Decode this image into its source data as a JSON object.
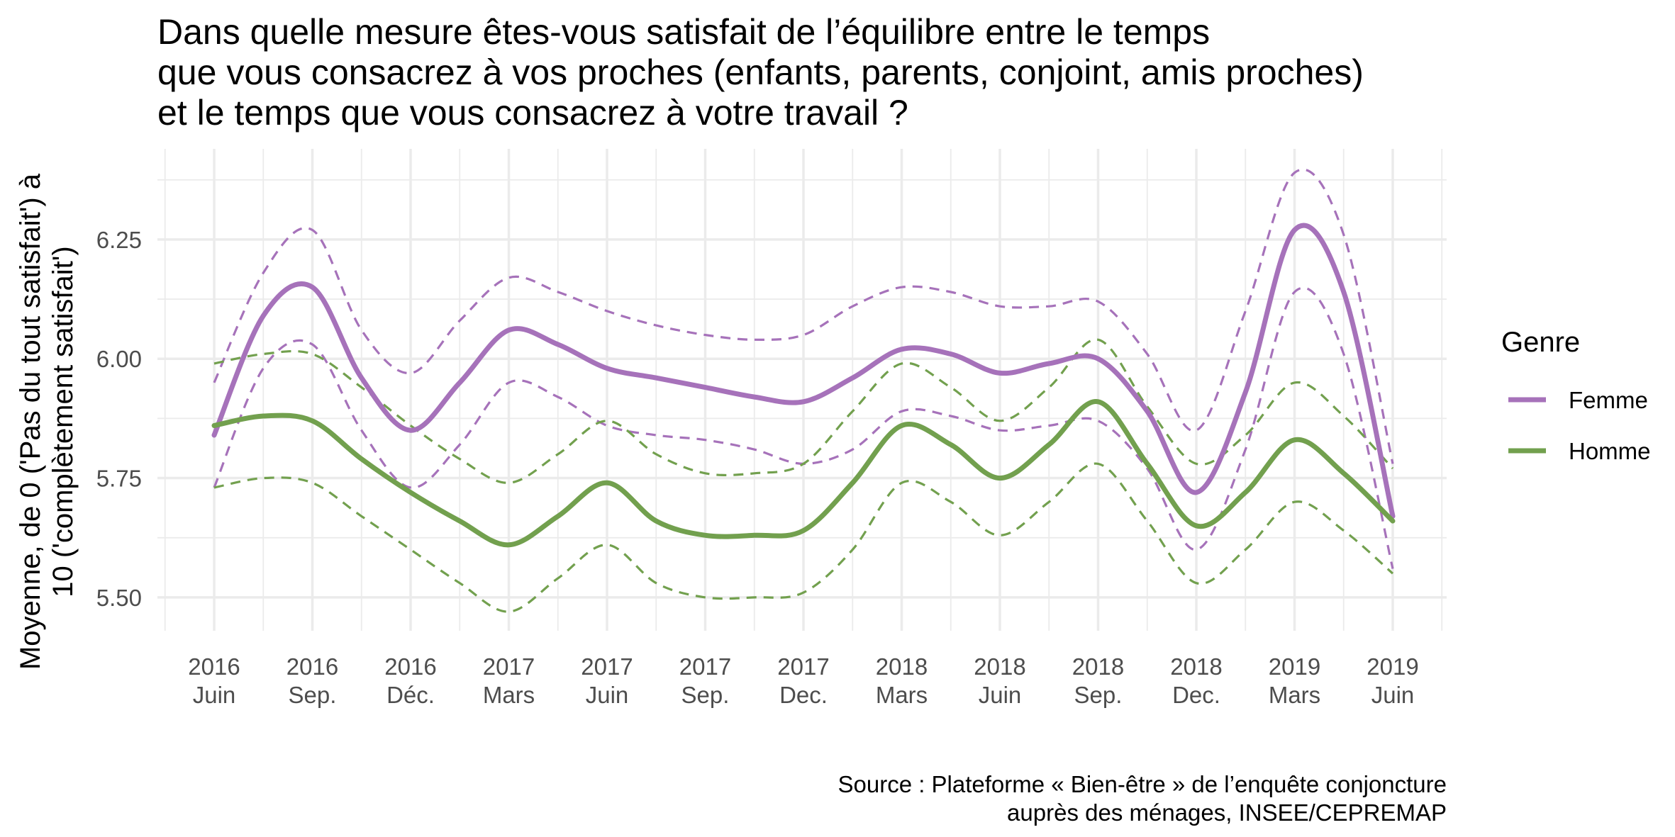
{
  "chart_data": {
    "type": "line",
    "title_lines": [
      "Dans quelle mesure êtes-vous satisfait de l’équilibre entre le temps",
      "que vous consacrez à vos proches (enfants, parents, conjoint, amis proches)",
      "et le temps que vous consacrez à votre travail ?"
    ],
    "ylabel_lines": [
      "Moyenne, de 0 ('Pas du tout satisfait') à",
      "10 ('complètement satisfait')"
    ],
    "xlabel": "",
    "x_ticks": [
      {
        "year": "2016",
        "month": "Juin"
      },
      {
        "year": "2016",
        "month": "Sep."
      },
      {
        "year": "2016",
        "month": "Déc."
      },
      {
        "year": "2017",
        "month": "Mars"
      },
      {
        "year": "2017",
        "month": "Juin"
      },
      {
        "year": "2017",
        "month": "Sep."
      },
      {
        "year": "2017",
        "month": "Dec."
      },
      {
        "year": "2018",
        "month": "Mars"
      },
      {
        "year": "2018",
        "month": "Juin"
      },
      {
        "year": "2018",
        "month": "Sep."
      },
      {
        "year": "2018",
        "month": "Dec."
      },
      {
        "year": "2019",
        "month": "Mars"
      },
      {
        "year": "2019",
        "month": "Juin"
      }
    ],
    "y_ticks": [
      "5.50",
      "5.75",
      "6.00",
      "6.25"
    ],
    "ylim": [
      5.43,
      6.44
    ],
    "xlim": [
      -0.5,
      12.5
    ],
    "grid": true,
    "legend": {
      "title": "Genre",
      "position": "right",
      "entries": [
        {
          "label": "Femme",
          "color": "#a672ba"
        },
        {
          "label": "Homme",
          "color": "#72a04e"
        }
      ]
    },
    "series": [
      {
        "name": "Femme",
        "color": "#a672ba",
        "x": [
          0,
          0.5,
          1,
          1.5,
          2,
          2.5,
          3,
          3.5,
          4,
          4.5,
          5,
          5.5,
          6,
          6.5,
          7,
          7.5,
          8,
          8.5,
          9,
          9.5,
          10,
          10.5,
          11,
          11.5,
          12
        ],
        "mean": [
          5.84,
          6.09,
          6.15,
          5.96,
          5.85,
          5.95,
          6.06,
          6.03,
          5.98,
          5.96,
          5.94,
          5.92,
          5.91,
          5.96,
          6.02,
          6.01,
          5.97,
          5.99,
          6.0,
          5.89,
          5.72,
          5.93,
          6.27,
          6.14,
          5.67
        ],
        "upper": [
          5.95,
          6.18,
          6.27,
          6.06,
          5.97,
          6.08,
          6.17,
          6.14,
          6.1,
          6.07,
          6.05,
          6.04,
          6.05,
          6.11,
          6.15,
          6.14,
          6.11,
          6.11,
          6.12,
          6.01,
          5.85,
          6.1,
          6.39,
          6.26,
          5.78
        ],
        "lower": [
          5.73,
          5.98,
          6.03,
          5.85,
          5.73,
          5.82,
          5.95,
          5.92,
          5.86,
          5.84,
          5.83,
          5.81,
          5.78,
          5.81,
          5.89,
          5.88,
          5.85,
          5.86,
          5.87,
          5.77,
          5.6,
          5.81,
          6.14,
          6.01,
          5.56
        ]
      },
      {
        "name": "Homme",
        "color": "#72a04e",
        "x": [
          0,
          0.5,
          1,
          1.5,
          2,
          2.5,
          3,
          3.5,
          4,
          4.5,
          5,
          5.5,
          6,
          6.5,
          7,
          7.5,
          8,
          8.5,
          9,
          9.5,
          10,
          10.5,
          11,
          11.5,
          12
        ],
        "mean": [
          5.86,
          5.88,
          5.87,
          5.79,
          5.72,
          5.66,
          5.61,
          5.67,
          5.74,
          5.66,
          5.63,
          5.63,
          5.64,
          5.74,
          5.86,
          5.82,
          5.75,
          5.82,
          5.91,
          5.78,
          5.65,
          5.72,
          5.83,
          5.76,
          5.66
        ],
        "upper": [
          5.99,
          6.01,
          6.01,
          5.94,
          5.86,
          5.79,
          5.74,
          5.8,
          5.87,
          5.8,
          5.76,
          5.76,
          5.78,
          5.89,
          5.99,
          5.94,
          5.87,
          5.94,
          6.04,
          5.9,
          5.78,
          5.84,
          5.95,
          5.88,
          5.77
        ],
        "lower": [
          5.73,
          5.75,
          5.74,
          5.67,
          5.6,
          5.53,
          5.47,
          5.54,
          5.61,
          5.53,
          5.5,
          5.5,
          5.51,
          5.6,
          5.74,
          5.7,
          5.63,
          5.7,
          5.78,
          5.66,
          5.53,
          5.6,
          5.7,
          5.64,
          5.55
        ]
      }
    ],
    "caption_lines": [
      "Source : Plateforme « Bien-être » de l’enquête conjoncture",
      "auprès des ménages, INSEE/CEPREMAP"
    ]
  }
}
